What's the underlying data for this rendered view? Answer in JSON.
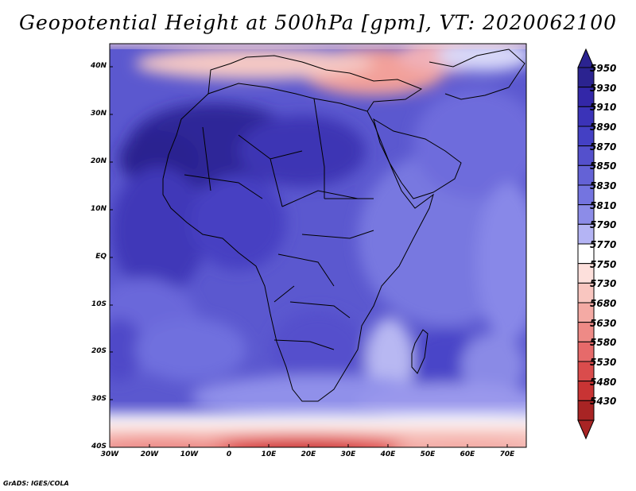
{
  "title": "Geopotential Height at 500hPa [gpm], VT: 2020062100",
  "footer": "GrADS: IGES/COLA",
  "lat_labels": [
    "40N",
    "30N",
    "20N",
    "10N",
    "EQ",
    "10S",
    "20S",
    "30S",
    "40S"
  ],
  "lon_labels": [
    "30W",
    "20W",
    "10W",
    "0",
    "10E",
    "20E",
    "30E",
    "40E",
    "50E",
    "60E",
    "70E"
  ],
  "colorbar": {
    "levels": [
      "5950",
      "5930",
      "5910",
      "5890",
      "5870",
      "5850",
      "5830",
      "5810",
      "5790",
      "5770",
      "5750",
      "5730",
      "5680",
      "5630",
      "5580",
      "5530",
      "5480",
      "5430"
    ],
    "colors": [
      "#2b2390",
      "#3327a8",
      "#3b33b8",
      "#4440c4",
      "#5450cc",
      "#6462d6",
      "#7474e0",
      "#8c8ce8",
      "#b4b4f4",
      "#ffffff",
      "#fde0dc",
      "#f9c6c0",
      "#f4aaa4",
      "#ee8a86",
      "#e66a6a",
      "#da4c4c",
      "#c83434",
      "#a82424"
    ]
  },
  "map": {
    "extent": {
      "lon": [
        -30,
        75
      ],
      "lat": [
        -40,
        45
      ]
    },
    "colors": {
      "deep": "#2e2598",
      "mid": "#4a45c8",
      "light": "#7c7ae2",
      "pale": "#b8b8f2",
      "white": "#ffffff",
      "pink": "#f6b2ac",
      "red": "#e45a5a",
      "darkred": "#c83434"
    }
  }
}
